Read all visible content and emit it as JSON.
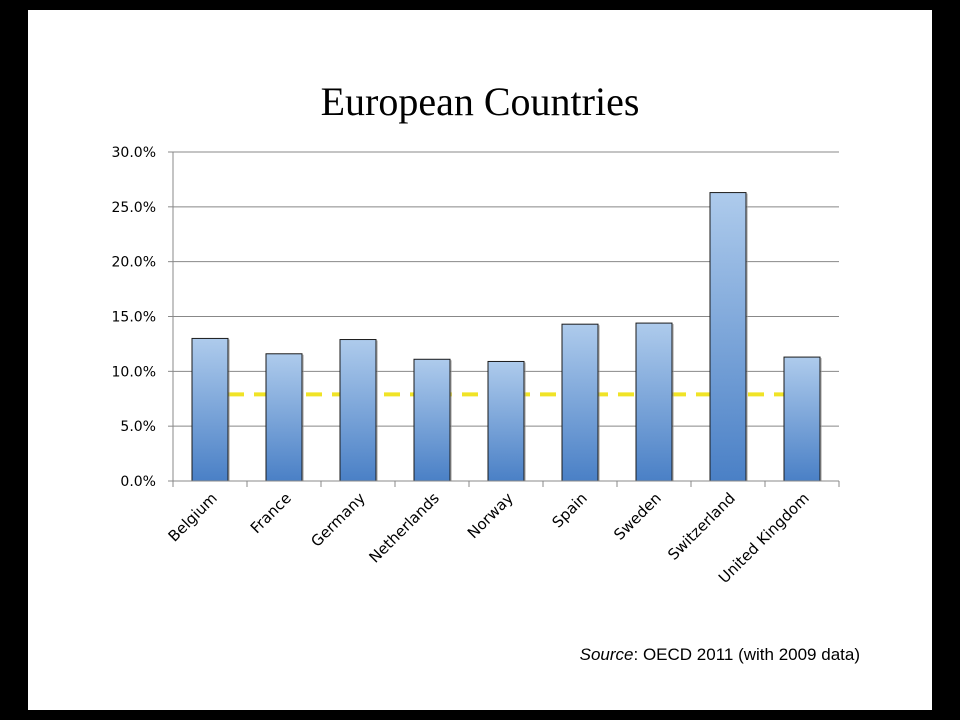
{
  "source": {
    "label": "Source",
    "text": ": OECD 2011 (with 2009 data)"
  },
  "chart_data": {
    "type": "bar",
    "title": "European Countries",
    "categories": [
      "Belgium",
      "France",
      "Germany",
      "Netherlands",
      "Norway",
      "Spain",
      "Sweden",
      "Switzerland",
      "United Kingdom"
    ],
    "values": [
      13.0,
      11.6,
      12.9,
      11.1,
      10.9,
      14.3,
      14.4,
      26.3,
      11.3
    ],
    "y_ticks": [
      "0.0%",
      "5.0%",
      "10.0%",
      "15.0%",
      "20.0%",
      "25.0%",
      "30.0%"
    ],
    "ylim": [
      0,
      30
    ],
    "reference_line": 7.9,
    "grid": true,
    "colors": {
      "bar_top": "#aecbec",
      "bar_bottom": "#4a80c6",
      "bar_edge": "#1a1a1a",
      "reference": "#f0e326",
      "grid": "#888888"
    }
  }
}
